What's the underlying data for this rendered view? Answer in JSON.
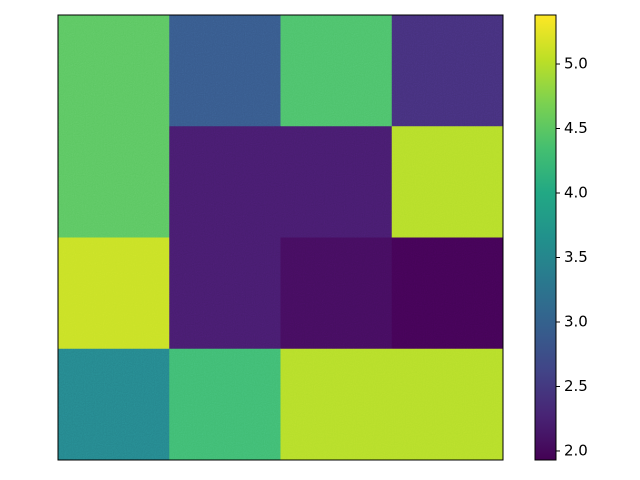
{
  "chart_data": {
    "type": "heatmap",
    "colormap": "viridis",
    "z": [
      [
        4.5,
        2.9,
        4.4,
        2.4
      ],
      [
        4.5,
        2.2,
        2.2,
        5.0
      ],
      [
        5.1,
        2.2,
        2.05,
        1.95
      ],
      [
        3.5,
        4.3,
        5.0,
        5.0
      ]
    ],
    "zlim": [
      1.93,
      5.38
    ],
    "zticks": [
      {
        "value": 2,
        "label": "2.0"
      },
      2.5,
      {
        "value": 3,
        "label": "3.0"
      },
      3.5,
      {
        "value": 4,
        "label": "4.0"
      },
      4.5,
      {
        "value": 5,
        "label": "5.0"
      }
    ]
  }
}
